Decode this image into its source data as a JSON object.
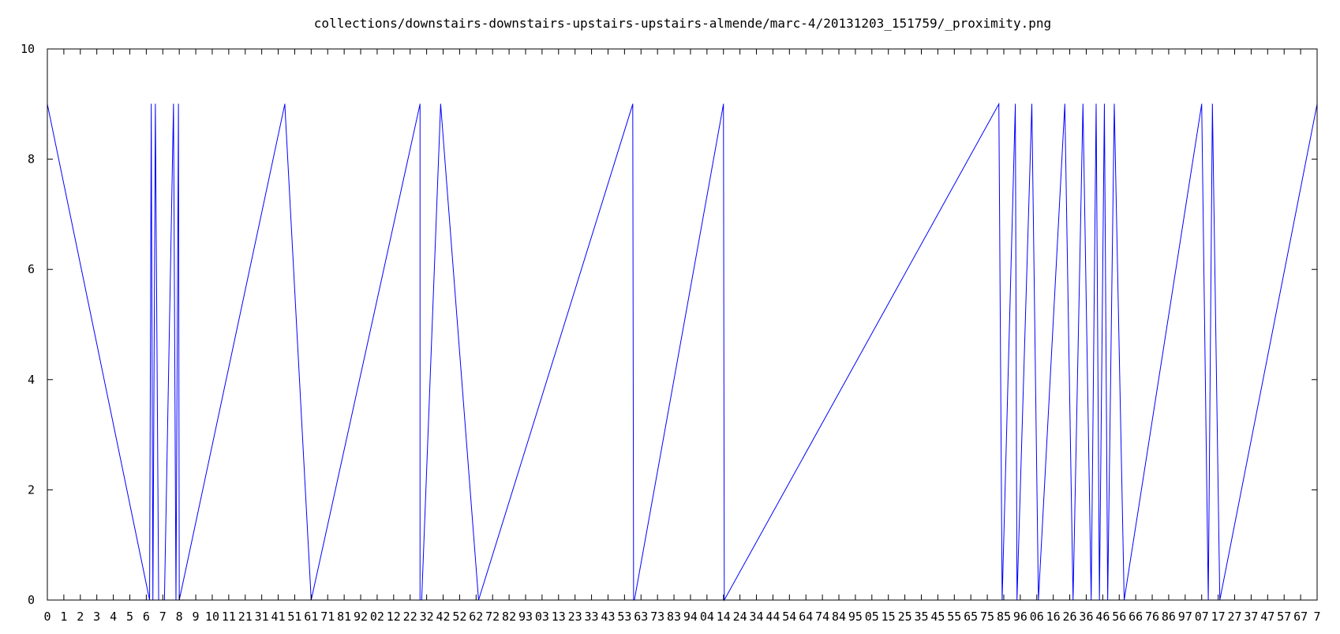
{
  "chart_data": {
    "type": "line",
    "title": "collections/downstairs-downstairs-upstairs-upstairs-almende/marc-4/20131203_151759/_proximity.png",
    "xlabel": "",
    "ylabel": "",
    "xlim": [
      0,
      77
    ],
    "ylim": [
      0,
      10
    ],
    "x_tick_values": [
      0,
      1,
      2,
      3,
      4,
      5,
      6,
      7,
      8,
      9,
      10,
      11,
      12,
      13,
      14,
      15,
      16,
      17,
      18,
      19,
      20,
      21,
      22,
      23,
      24,
      25,
      26,
      27,
      28,
      29,
      30,
      31,
      32,
      33,
      34,
      35,
      36,
      37,
      38,
      39,
      40,
      41,
      42,
      43,
      44,
      45,
      46,
      47,
      48,
      49,
      50,
      51,
      52,
      53,
      54,
      55,
      56,
      57,
      58,
      59,
      60,
      61,
      62,
      63,
      64,
      65,
      66,
      67,
      68,
      69,
      70,
      71,
      72,
      73,
      74,
      75,
      76,
      77
    ],
    "x_tick_labels": [
      "0",
      "1",
      "2",
      "3",
      "4",
      "5",
      "6",
      "7",
      "8",
      "9",
      "1",
      "0",
      "1",
      "1",
      "2",
      "1",
      "4",
      "1",
      "5",
      "1",
      "6",
      "1",
      "7",
      "1",
      "8",
      "1",
      "9",
      "2",
      "0",
      "2",
      "1",
      "2",
      "2",
      "2",
      "3",
      "2",
      "4",
      "2",
      "5",
      "2",
      "6",
      "2",
      "7",
      "2",
      "8",
      "2",
      "9",
      "3",
      "0",
      "3",
      "1",
      "3",
      "2",
      "3",
      "3",
      "3",
      "4",
      "3",
      "5",
      "3",
      "6",
      "3",
      "7",
      "3",
      "8",
      "3",
      "9",
      "4",
      "0",
      "4",
      "1",
      "4",
      "2",
      "4",
      "3",
      "4",
      "4",
      "4",
      "5",
      "4",
      "6",
      "4",
      "7",
      "4",
      "8",
      "4",
      "9",
      "5",
      "0",
      "5",
      "1",
      "5",
      "2",
      "5",
      "3",
      "5",
      "4",
      "5",
      "5",
      "5",
      "6",
      "5",
      "7",
      "5",
      "8",
      "5",
      "9",
      "6",
      "0",
      "6",
      "1",
      "6",
      "2",
      "6",
      "3",
      "6",
      "4",
      "6",
      "5",
      "6",
      "6",
      "6",
      "7",
      "6",
      "8",
      "6",
      "9",
      "7",
      "0",
      "7",
      "1",
      "7",
      "2",
      "7",
      "3",
      "7",
      "4",
      "7",
      "5",
      "7",
      "6",
      "7",
      "7"
    ],
    "x_tick_text": "0 1 2 3 4 5 6 7 8 9 1 0 1 1 2 1 4 1 5 1 6 1 7 1 8 1 9 2 0 2 1 2 2 2 3 2 4 2 5 2 6 2 7 2 8 2 9 3 0 3 1 3 2 3 3 3 4 3 5 3 6 3 7 3 8 3 9 4 0 4 1 4 2 4 3 4 4 4 5 4 6 4 7 4 8 4 9 5 0 5 1 5 2 5 3 5 4 5 5 5 6 5 7 5 8 5 9 6 0 6 1 6 2 6 3 6 4 6 5 6 6 6 7 6 8 6 9 7 0 7 1 7 2 7 3 7 4 7 5 7 6 7 7",
    "x_tick_glyphs": [
      "0",
      "1",
      "2",
      "3",
      "4",
      "5",
      "6",
      "7",
      "8",
      "9",
      "1",
      "0",
      "1",
      "1",
      "2",
      "1",
      "4",
      "1",
      "5",
      "1",
      "6",
      "1",
      "7",
      "1",
      "8",
      "1",
      "9",
      "2",
      "0",
      "2",
      "1",
      "2",
      "2",
      "2",
      "3",
      "2",
      "4",
      "2",
      "5",
      "2",
      "6",
      "2",
      "7",
      "2",
      "8",
      "2",
      "9",
      "3",
      "0",
      "3",
      "1",
      "3",
      "2",
      "3",
      "3",
      "3",
      "4",
      "3",
      "5",
      "3",
      "6",
      "3",
      "7",
      "3",
      "8",
      "3",
      "9",
      "4",
      "0",
      "4",
      "1",
      "4",
      "2",
      "4",
      "3",
      "4",
      "4",
      "4",
      "5",
      "4",
      "6",
      "4",
      "7",
      "4",
      "8",
      "4",
      "9",
      "5",
      "0",
      "5",
      "1",
      "5",
      "2",
      "5",
      "3",
      "5",
      "4",
      "5",
      "5",
      "5",
      "6",
      "5",
      "7",
      "5",
      "8",
      "5",
      "9",
      "6",
      "0",
      "6",
      "1",
      "6",
      "2",
      "6",
      "3",
      "6",
      "4",
      "6",
      "5",
      "6",
      "6",
      "6",
      "7",
      "6",
      "8",
      "6",
      "9",
      "7",
      "0",
      "7",
      "1",
      "7",
      "2",
      "7",
      "3",
      "7",
      "4",
      "7",
      "5",
      "7",
      "6",
      "7",
      "7"
    ],
    "x_tick_rendered": [
      "0",
      "1",
      "2",
      "3",
      "4",
      "5",
      "6",
      "7",
      "8",
      "9",
      "10",
      "11",
      "21",
      "31",
      "41",
      "51",
      "61",
      "71",
      "81",
      "92",
      "02",
      "12",
      "22",
      "32",
      "42",
      "52",
      "62",
      "72",
      "82",
      "93",
      "03",
      "13",
      "23",
      "33",
      "43",
      "53",
      "63",
      "73",
      "83",
      "94",
      "04",
      "14",
      "24",
      "34",
      "44",
      "54",
      "64",
      "74",
      "84",
      "95",
      "05",
      "15",
      "25",
      "35",
      "45",
      "55",
      "65",
      "75",
      "85",
      "96",
      "06",
      "16",
      "26",
      "36",
      "46",
      "56",
      "66",
      "76",
      "86",
      "97",
      "07",
      "17",
      "27",
      "37",
      "47",
      "57",
      "67",
      "7"
    ],
    "y_ticks": [
      0,
      2,
      4,
      6,
      8,
      10
    ],
    "y_tick_labels": [
      "0",
      "2",
      "4",
      "6",
      "8",
      "10"
    ],
    "grid": false,
    "series": [
      {
        "color": "#0000ff",
        "x": [
          0,
          6.2,
          6.3,
          6.4,
          6.55,
          6.75,
          7.1,
          7.65,
          7.8,
          7.95,
          8.0,
          14.4,
          16.0,
          22.6,
          22.6,
          22.7,
          23.85,
          26.15,
          35.5,
          35.55,
          35.6,
          41.0,
          41.05,
          57.7,
          57.9,
          58.7,
          58.8,
          59.7,
          60.1,
          61.7,
          62.2,
          62.8,
          63.3,
          63.6,
          63.8,
          64.1,
          64.3,
          64.7,
          65.3,
          70.0,
          70.4,
          70.65,
          71.1,
          77.0
        ],
        "y": [
          9,
          0,
          9,
          0,
          9,
          0,
          0,
          9,
          0,
          9,
          0,
          9,
          0,
          9,
          0,
          0,
          9,
          0,
          9,
          0,
          0,
          9,
          0,
          9,
          0,
          9,
          0,
          9,
          0,
          9,
          0,
          9,
          0,
          9,
          0,
          9,
          0,
          9,
          0,
          9,
          0,
          9,
          0,
          9
        ]
      },
      {
        "color": "#ff0000",
        "x": [
          0,
          77
        ],
        "y": [
          0,
          0
        ]
      }
    ]
  }
}
